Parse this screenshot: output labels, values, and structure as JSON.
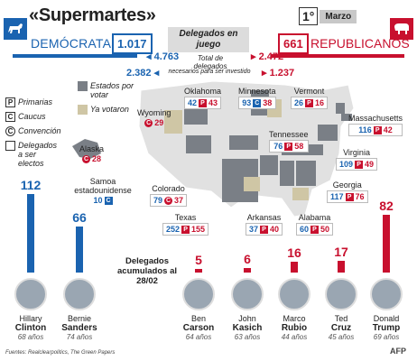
{
  "title": "«Supermartes»",
  "date": {
    "day": "1°",
    "month": "Marzo"
  },
  "dem": {
    "label": "DEMÓCRATAS",
    "count": "1.017",
    "total": "4.763",
    "needed": "2.382"
  },
  "rep": {
    "label": "REPUBLICANOS",
    "count": "661",
    "total": "2.472",
    "needed": "1.237"
  },
  "center": {
    "title": "Delegados en juego",
    "total_text": "Total de delegados",
    "needed_text": "necesarios para ser investido"
  },
  "legend": {
    "primarias": "Primarias",
    "caucus": "Caucus",
    "convencion": "Convención",
    "delegados": "Delegados a ser electos",
    "por_votar": "Estados por votar",
    "ya_votaron": "Ya votaron",
    "p": "P",
    "c": "C"
  },
  "states": [
    {
      "name": "Oklahoma",
      "d": "42",
      "r": "43",
      "type": "P"
    },
    {
      "name": "Minnesota",
      "d": "93",
      "r": "38",
      "type": "C"
    },
    {
      "name": "Vermont",
      "d": "26",
      "r": "16",
      "type": "P"
    },
    {
      "name": "Wyoming",
      "d": "",
      "r": "29",
      "type": "C"
    },
    {
      "name": "Massachusetts",
      "d": "116",
      "r": "42",
      "type": "P"
    },
    {
      "name": "Alaska",
      "d": "",
      "r": "28",
      "type": "C"
    },
    {
      "name": "Tennessee",
      "d": "76",
      "r": "58",
      "type": "P"
    },
    {
      "name": "Virginia",
      "d": "109",
      "r": "49",
      "type": "P"
    },
    {
      "name": "Samoa estadounidense",
      "d": "10",
      "r": "",
      "type": "C"
    },
    {
      "name": "Colorado",
      "d": "79",
      "r": "37",
      "type": "C"
    },
    {
      "name": "Georgia",
      "d": "117",
      "r": "76",
      "type": "P"
    },
    {
      "name": "Texas",
      "d": "252",
      "r": "155",
      "type": "P"
    },
    {
      "name": "Arkansas",
      "d": "37",
      "r": "40",
      "type": "P"
    },
    {
      "name": "Alabama",
      "d": "60",
      "r": "50",
      "type": "P"
    }
  ],
  "accumulated": "Delegados acumulados al 28/02",
  "candidates": [
    {
      "first": "Hillary",
      "last": "Clinton",
      "age": "68 años",
      "delegates": "112",
      "party": "dem"
    },
    {
      "first": "Bernie",
      "last": "Sanders",
      "age": "74 años",
      "delegates": "66",
      "party": "dem"
    },
    {
      "first": "Ben",
      "last": "Carson",
      "age": "64 años",
      "delegates": "5",
      "party": "rep"
    },
    {
      "first": "John",
      "last": "Kasich",
      "age": "63 años",
      "delegates": "6",
      "party": "rep"
    },
    {
      "first": "Marco",
      "last": "Rubio",
      "age": "44 años",
      "delegates": "16",
      "party": "rep"
    },
    {
      "first": "Ted",
      "last": "Cruz",
      "age": "45 años",
      "delegates": "17",
      "party": "rep"
    },
    {
      "first": "Donald",
      "last": "Trump",
      "age": "69 años",
      "delegates": "82",
      "party": "rep"
    }
  ],
  "footer": "Fuentes: Realclearpolitics, The Green Papers",
  "credit": "AFP",
  "colors": {
    "dem": "#1a63b0",
    "rep": "#c8102e"
  }
}
